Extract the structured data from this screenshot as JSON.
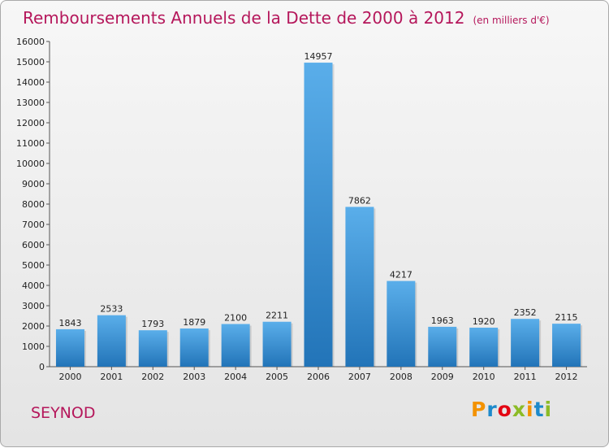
{
  "chart_data": {
    "type": "bar",
    "title": "Remboursements Annuels de la Dette de 2000 à 2012",
    "subtitle": "(en milliers d'€)",
    "categories": [
      "2000",
      "2001",
      "2002",
      "2003",
      "2004",
      "2005",
      "2006",
      "2007",
      "2008",
      "2009",
      "2010",
      "2011",
      "2012"
    ],
    "values": [
      1843,
      2533,
      1793,
      1879,
      2100,
      2211,
      14957,
      7862,
      4217,
      1963,
      1920,
      2352,
      2115
    ],
    "ylim": [
      0,
      16000
    ],
    "ytick_step": 1000,
    "xlabel": "",
    "ylabel": "",
    "grid": false,
    "bar_color": "#3a97dd"
  },
  "place_name": "SEYNOD",
  "logo": {
    "letters": [
      "P",
      "r",
      "o",
      "x",
      "i",
      "t",
      "i"
    ],
    "colors": [
      "#f39200",
      "#1d8acb",
      "#e30613",
      "#8cbb26",
      "#f39200",
      "#1d8acb",
      "#8cbb26"
    ]
  },
  "colors": {
    "title": "#b5175b",
    "axis": "#555555"
  }
}
